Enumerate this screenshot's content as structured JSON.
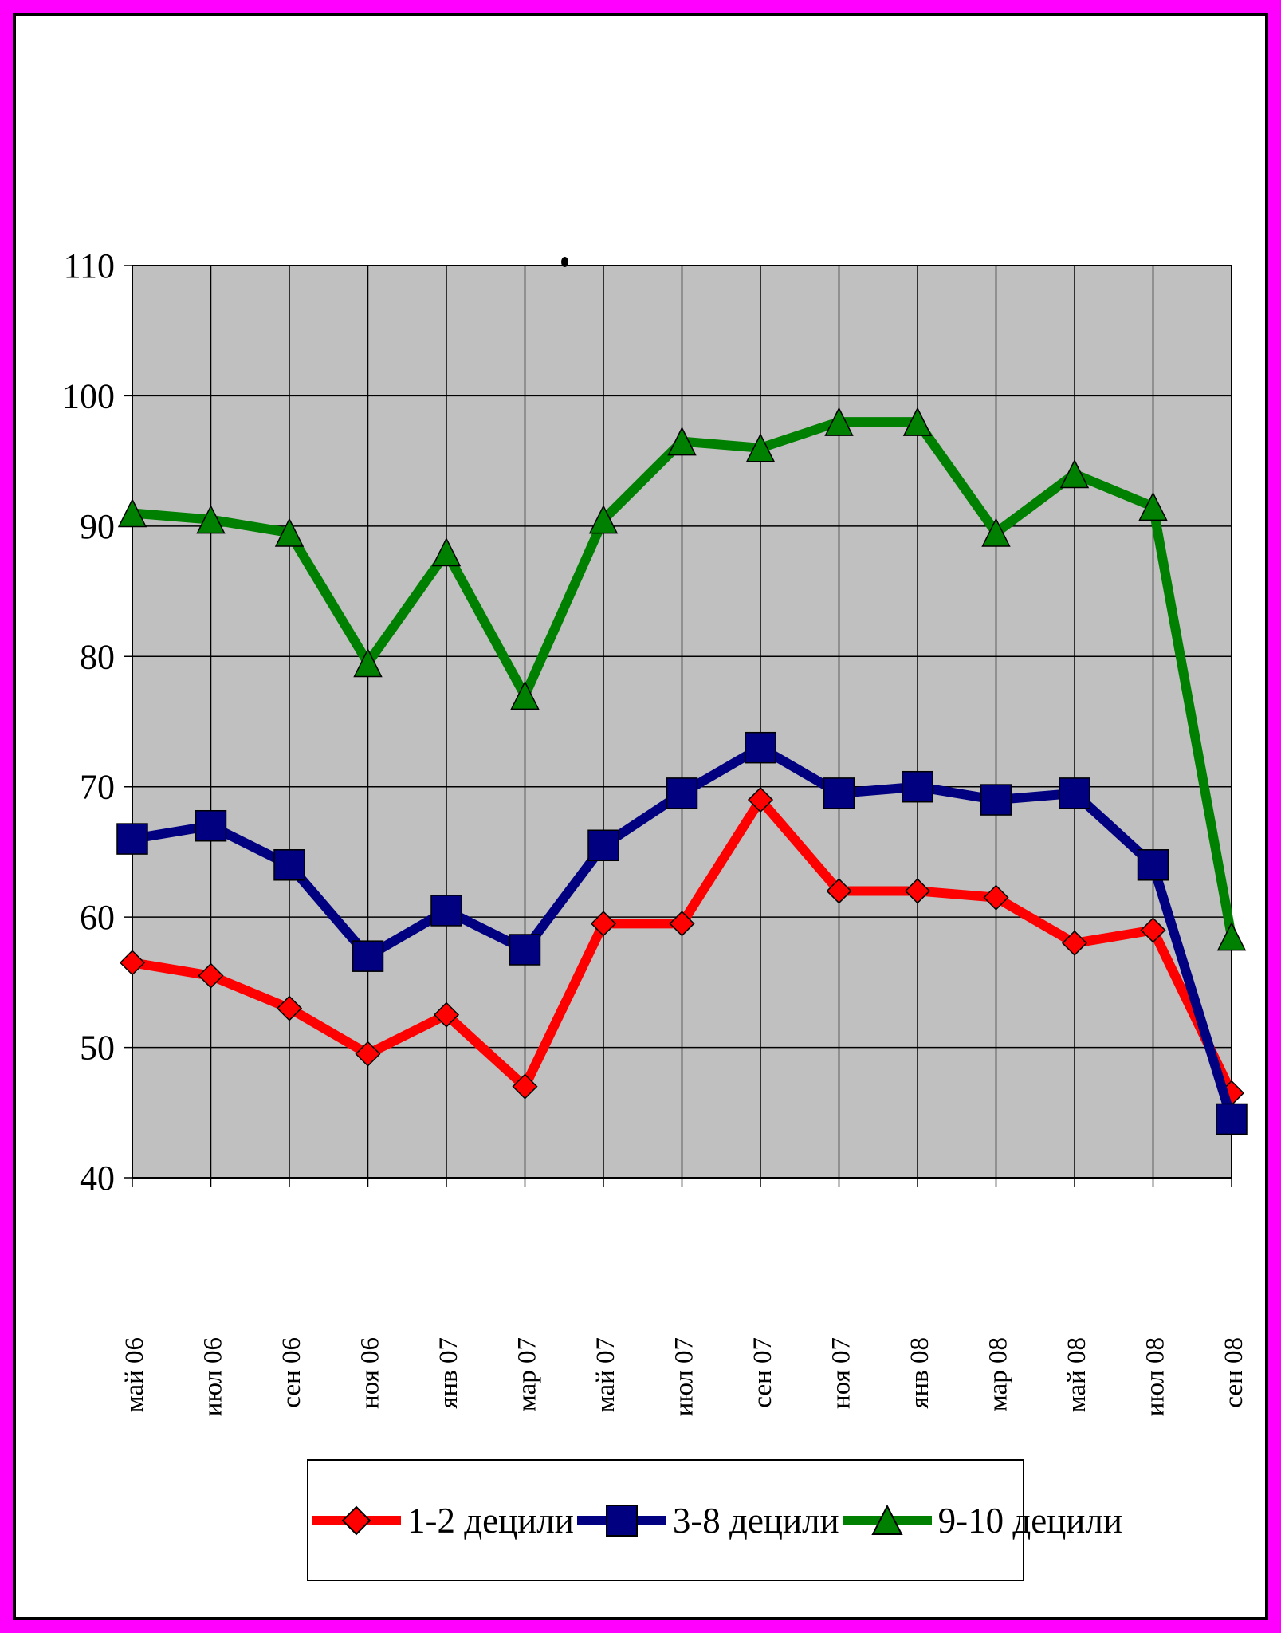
{
  "frame": {
    "outer_color": "#ff00ff",
    "inner_color": "#000000"
  },
  "chart_data": {
    "type": "line",
    "title": "",
    "xlabel": "",
    "ylabel": "",
    "categories": [
      "май 06",
      "июл 06",
      "сен 06",
      "ноя 06",
      "янв 07",
      "мар 07",
      "май 07",
      "июл 07",
      "сен 07",
      "ноя 07",
      "янв 08",
      "мар 08",
      "май 08",
      "июл 08",
      "сен 08"
    ],
    "series": [
      {
        "name": "1-2 децили",
        "color": "#ff0000",
        "marker": "diamond",
        "values": [
          56.5,
          55.5,
          53,
          49.5,
          52.5,
          47,
          59.5,
          59.5,
          69,
          62,
          62,
          61.5,
          58,
          59,
          46.5
        ]
      },
      {
        "name": "3-8 децили",
        "color": "#000080",
        "marker": "square",
        "values": [
          66,
          67,
          64,
          57,
          60.5,
          57.5,
          65.5,
          69.5,
          73,
          69.5,
          70,
          69,
          69.5,
          64,
          44.5
        ]
      },
      {
        "name": "9-10 децили",
        "color": "#008000",
        "marker": "triangle",
        "values": [
          91,
          90.5,
          89.5,
          79.5,
          88,
          77,
          90.5,
          96.5,
          96,
          98,
          98,
          89.5,
          94,
          91.5,
          58.5
        ]
      }
    ],
    "ylim": [
      40,
      110
    ],
    "yticks": [
      40,
      50,
      60,
      70,
      80,
      90,
      100,
      110
    ],
    "plot_bg": "#c0c0c0",
    "grid": true,
    "legend_position": "bottom"
  }
}
